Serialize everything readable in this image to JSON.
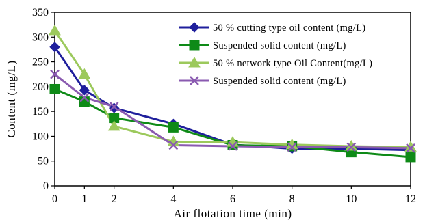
{
  "chart_data": {
    "type": "line",
    "xlabel": "Air flotation time (min)",
    "ylabel": "Content (mg/L)",
    "x": [
      0,
      1,
      2,
      4,
      6,
      8,
      10,
      12
    ],
    "x_ticks": [
      "0",
      "1",
      "2",
      "4",
      "6",
      "8",
      "10",
      "12"
    ],
    "y_ticks": [
      0,
      50,
      100,
      150,
      200,
      250,
      300,
      350
    ],
    "ylim": [
      0,
      350
    ],
    "grid": false,
    "legend_position": "top-right",
    "series": [
      {
        "name": "50 % cutting type oil content (mg/L)",
        "values": [
          280,
          193,
          157,
          125,
          83,
          75,
          75,
          72
        ],
        "color": "#1f1f9c",
        "marker": "diamond"
      },
      {
        "name": "Suspended solid content (mg/L)",
        "values": [
          195,
          170,
          137,
          118,
          82,
          80,
          68,
          58
        ],
        "color": "#0e8a17",
        "marker": "square"
      },
      {
        "name": "50 % network type Oil Content(mg/L)",
        "values": [
          313,
          225,
          120,
          89,
          88,
          83,
          80,
          78
        ],
        "color": "#9cc95c",
        "marker": "triangle"
      },
      {
        "name": "Suspended solid content (mg/L)",
        "values": [
          225,
          178,
          160,
          82,
          80,
          78,
          78,
          76
        ],
        "color": "#8a5ab0",
        "marker": "x"
      }
    ]
  }
}
